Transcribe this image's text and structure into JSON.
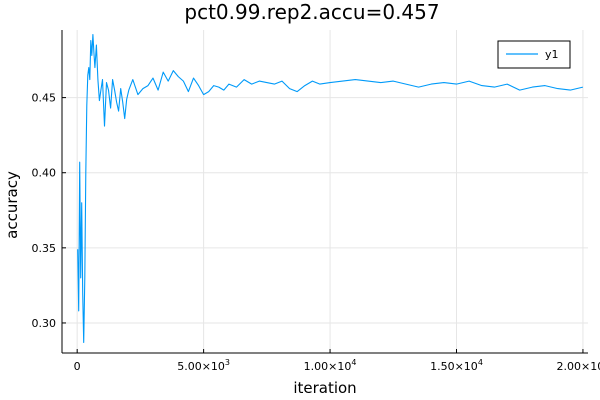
{
  "chart_data": {
    "type": "line",
    "title": "pct0.99.rep2.accu=0.457",
    "xlabel": "iteration",
    "ylabel": "accuracy",
    "xlim": [
      -600,
      20200
    ],
    "ylim": [
      0.28,
      0.495
    ],
    "grid": true,
    "legend_position": "top-right",
    "colors": {
      "series": "#009AF9"
    },
    "x_ticks": [
      {
        "value": 0,
        "base": "0",
        "exp": ""
      },
      {
        "value": 5000,
        "base": "5.00×10",
        "exp": "3"
      },
      {
        "value": 10000,
        "base": "1.00×10",
        "exp": "4"
      },
      {
        "value": 15000,
        "base": "1.50×10",
        "exp": "4"
      },
      {
        "value": 20000,
        "base": "2.00×10",
        "exp": "4"
      }
    ],
    "y_ticks": [
      {
        "value": 0.3,
        "label": "0.30"
      },
      {
        "value": 0.35,
        "label": "0.35"
      },
      {
        "value": 0.4,
        "label": "0.40"
      },
      {
        "value": 0.45,
        "label": "0.45"
      }
    ],
    "series": [
      {
        "name": "y1",
        "x": [
          20,
          60,
          100,
          140,
          180,
          220,
          260,
          300,
          340,
          380,
          420,
          460,
          500,
          540,
          580,
          620,
          660,
          700,
          760,
          820,
          880,
          940,
          1000,
          1080,
          1160,
          1240,
          1320,
          1400,
          1480,
          1560,
          1640,
          1720,
          1800,
          1880,
          1960,
          2040,
          2200,
          2400,
          2600,
          2800,
          3000,
          3200,
          3400,
          3600,
          3800,
          4000,
          4200,
          4400,
          4600,
          4800,
          5000,
          5200,
          5400,
          5600,
          5800,
          6000,
          6300,
          6600,
          6900,
          7200,
          7500,
          7800,
          8100,
          8400,
          8700,
          9000,
          9300,
          9600,
          10000,
          10500,
          11000,
          11500,
          12000,
          12500,
          13000,
          13500,
          14000,
          14500,
          15000,
          15500,
          16000,
          16500,
          17000,
          17500,
          18000,
          18500,
          19000,
          19500,
          20000
        ],
        "y": [
          0.349,
          0.308,
          0.407,
          0.33,
          0.38,
          0.32,
          0.287,
          0.33,
          0.4,
          0.445,
          0.465,
          0.47,
          0.462,
          0.488,
          0.478,
          0.492,
          0.48,
          0.47,
          0.485,
          0.462,
          0.448,
          0.455,
          0.462,
          0.431,
          0.46,
          0.455,
          0.443,
          0.462,
          0.455,
          0.447,
          0.441,
          0.456,
          0.447,
          0.436,
          0.449,
          0.455,
          0.462,
          0.452,
          0.456,
          0.458,
          0.463,
          0.455,
          0.467,
          0.461,
          0.468,
          0.464,
          0.461,
          0.454,
          0.463,
          0.458,
          0.452,
          0.454,
          0.458,
          0.457,
          0.455,
          0.459,
          0.457,
          0.462,
          0.459,
          0.461,
          0.46,
          0.459,
          0.461,
          0.456,
          0.454,
          0.458,
          0.461,
          0.459,
          0.46,
          0.461,
          0.462,
          0.461,
          0.46,
          0.461,
          0.459,
          0.457,
          0.459,
          0.46,
          0.459,
          0.461,
          0.458,
          0.457,
          0.459,
          0.455,
          0.457,
          0.458,
          0.456,
          0.455,
          0.457
        ]
      }
    ]
  }
}
